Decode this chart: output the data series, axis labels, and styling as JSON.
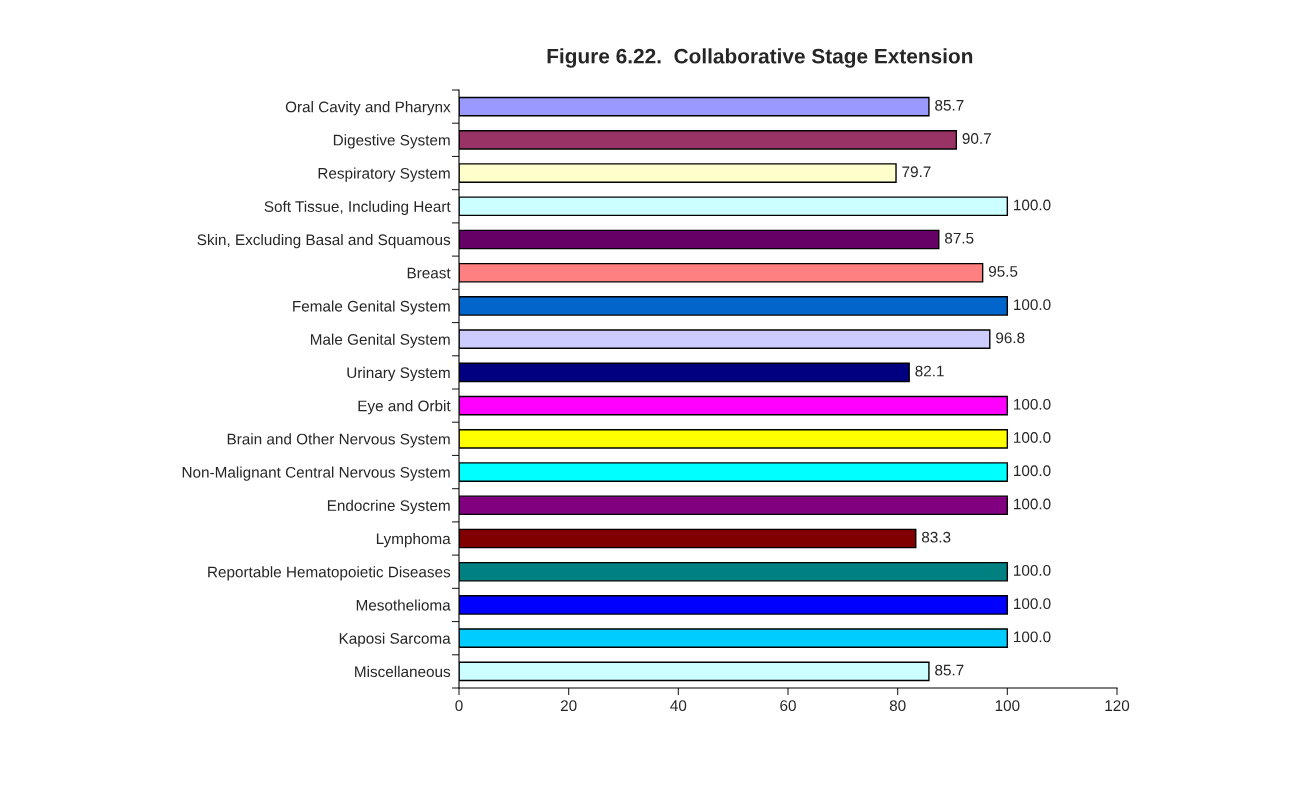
{
  "chart_data": {
    "type": "bar",
    "orientation": "horizontal",
    "title": "Figure 6.22.  Collaborative Stage Extension",
    "categories": [
      "Oral Cavity and Pharynx",
      "Digestive System",
      "Respiratory System",
      "Soft Tissue, Including Heart",
      "Skin, Excluding Basal and Squamous",
      "Breast",
      "Female Genital System",
      "Male Genital System",
      "Urinary System",
      "Eye and Orbit",
      "Brain and Other Nervous System",
      "Non-Malignant Central Nervous System",
      "Endocrine System",
      "Lymphoma",
      "Reportable Hematopoietic Diseases",
      "Mesothelioma",
      "Kaposi Sarcoma",
      "Miscellaneous"
    ],
    "values": [
      85.7,
      90.7,
      79.7,
      100.0,
      87.5,
      95.5,
      100.0,
      96.8,
      82.1,
      100.0,
      100.0,
      100.0,
      100.0,
      83.3,
      100.0,
      100.0,
      100.0,
      85.7
    ],
    "value_labels": [
      "85.7",
      "90.7",
      "79.7",
      "100.0",
      "87.5",
      "95.5",
      "100.0",
      "96.8",
      "82.1",
      "100.0",
      "100.0",
      "100.0",
      "100.0",
      "83.3",
      "100.0",
      "100.0",
      "100.0",
      "85.7"
    ],
    "colors": [
      "#9999ff",
      "#993366",
      "#ffffcc",
      "#ccffff",
      "#660066",
      "#ff8080",
      "#0066cc",
      "#ccccff",
      "#000080",
      "#ff00ff",
      "#ffff00",
      "#00ffff",
      "#800080",
      "#800000",
      "#008080",
      "#0000ff",
      "#00ccff",
      "#ccffff"
    ],
    "xlim": [
      0,
      120
    ],
    "xticks": [
      0,
      20,
      40,
      60,
      80,
      100,
      120
    ],
    "grid": false,
    "legend": false
  }
}
